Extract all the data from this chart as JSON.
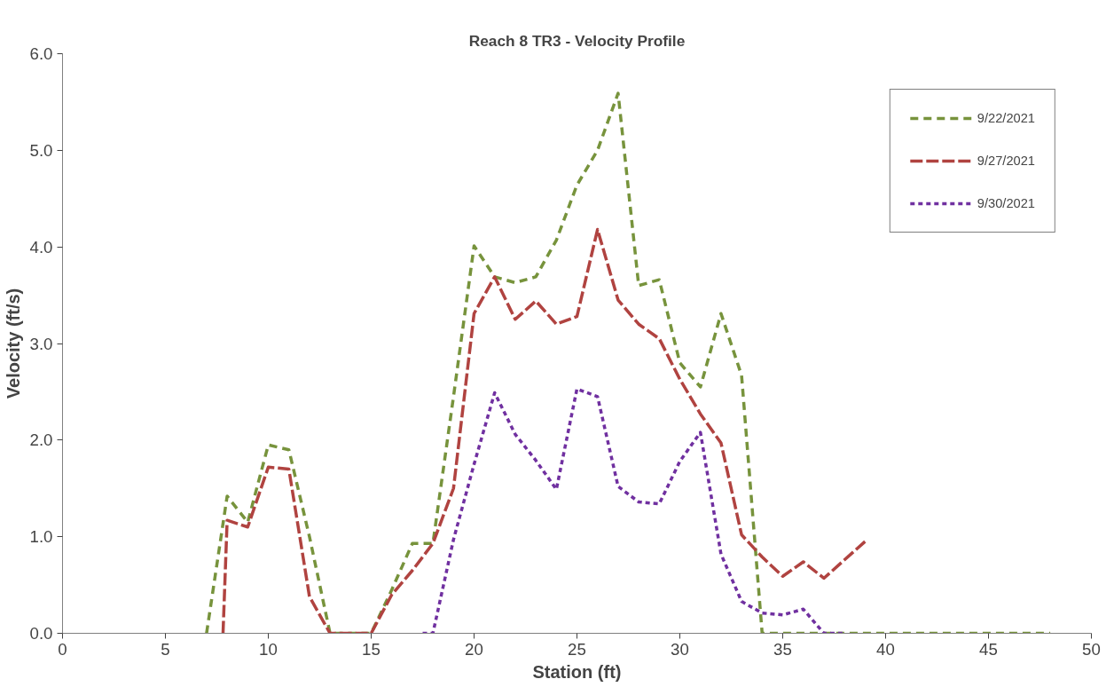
{
  "chart_data": {
    "type": "line",
    "title": "Reach 8 TR3 - Velocity Profile",
    "xlabel": "Station (ft)",
    "ylabel": "Velocity (ft/s)",
    "xlim": [
      0,
      50
    ],
    "xticks": [
      0,
      5,
      10,
      15,
      20,
      25,
      30,
      35,
      40,
      45,
      50
    ],
    "ylim": [
      0,
      6
    ],
    "yticks": [
      {
        "value": 0,
        "label": "0.0"
      },
      {
        "value": 1,
        "label": "1.0"
      },
      {
        "value": 2,
        "label": "2.0"
      },
      {
        "value": 3,
        "label": "3.0"
      },
      {
        "value": 4,
        "label": "4.0"
      },
      {
        "value": 5,
        "label": "5.0"
      },
      {
        "value": 6,
        "label": "6.0"
      }
    ],
    "grid": false,
    "legend": "top right",
    "marker": "none",
    "series": [
      {
        "name": "9/22/2021",
        "color": "#77933c",
        "line_style": "dashed",
        "x": [
          7,
          8,
          9,
          10,
          11,
          12,
          13,
          14,
          15,
          16,
          17,
          18,
          19,
          20,
          21,
          22,
          23,
          24,
          25,
          26,
          27,
          28,
          29,
          30,
          31,
          32,
          33,
          34,
          35,
          36,
          37,
          38,
          39,
          40,
          41,
          42,
          43,
          44,
          45,
          46,
          47,
          48
        ],
        "values": [
          0,
          1.42,
          1.15,
          1.95,
          1.9,
          1.0,
          0,
          0,
          0,
          0.45,
          0.93,
          0.93,
          2.45,
          4.01,
          3.69,
          3.63,
          3.69,
          4.07,
          4.64,
          5.0,
          5.59,
          3.6,
          3.66,
          2.8,
          2.55,
          3.31,
          2.67,
          0,
          0,
          0,
          0,
          0,
          0,
          0,
          0,
          0,
          0,
          0,
          0,
          0,
          0,
          0
        ]
      },
      {
        "name": "9/27/2021",
        "color": "#b04340",
        "line_style": "dashed",
        "x": [
          7.8,
          8,
          9,
          10,
          11,
          12,
          13,
          14,
          15,
          16,
          17,
          18,
          19,
          20,
          21,
          22,
          23,
          24,
          25,
          26,
          27,
          28,
          29,
          30,
          31,
          32,
          33,
          34,
          35,
          36,
          37,
          38,
          39
        ],
        "values": [
          0,
          1.17,
          1.1,
          1.72,
          1.7,
          0.38,
          0,
          0,
          0,
          0.4,
          0.65,
          0.93,
          1.5,
          3.31,
          3.69,
          3.25,
          3.44,
          3.2,
          3.28,
          4.18,
          3.45,
          3.2,
          3.05,
          2.63,
          2.27,
          1.97,
          1.02,
          0.79,
          0.59,
          0.74,
          0.57,
          0.76,
          0.95
        ]
      },
      {
        "name": "9/30/2021",
        "color": "#7030a0",
        "line_style": "dotted",
        "x": [
          17.5,
          18,
          19,
          20,
          21,
          22,
          23,
          24,
          25,
          26,
          27,
          28,
          29,
          30,
          31,
          32,
          33,
          34,
          35,
          36,
          37,
          38
        ],
        "values": [
          0,
          0,
          0.97,
          1.75,
          2.49,
          2.06,
          1.79,
          1.49,
          2.53,
          2.45,
          1.52,
          1.36,
          1.34,
          1.78,
          2.08,
          0.82,
          0.33,
          0.21,
          0.19,
          0.25,
          0,
          0
        ]
      }
    ]
  }
}
